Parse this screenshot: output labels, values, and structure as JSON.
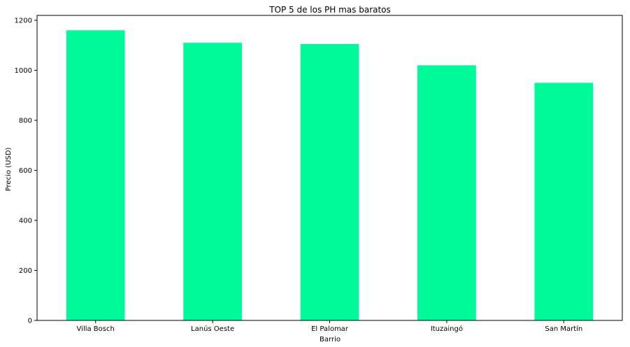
{
  "chart_data": {
    "type": "bar",
    "title": "TOP 5 de los PH mas baratos",
    "xlabel": "Barrio",
    "ylabel": "Precio (USD)",
    "categories": [
      "Villa Bosch",
      "Lanús Oeste",
      "El Palomar",
      "Ituzaingó",
      "San Martín"
    ],
    "values": [
      1160,
      1110,
      1105,
      1020,
      950
    ],
    "ylim": [
      0,
      1200
    ],
    "yticks": [
      0,
      200,
      400,
      600,
      800,
      1000,
      1200
    ],
    "ytick_labels": [
      "0",
      "200",
      "400",
      "600",
      "800",
      "1000",
      "1200"
    ],
    "bar_color": "#00fa9a",
    "grid": false,
    "legend": "none"
  }
}
